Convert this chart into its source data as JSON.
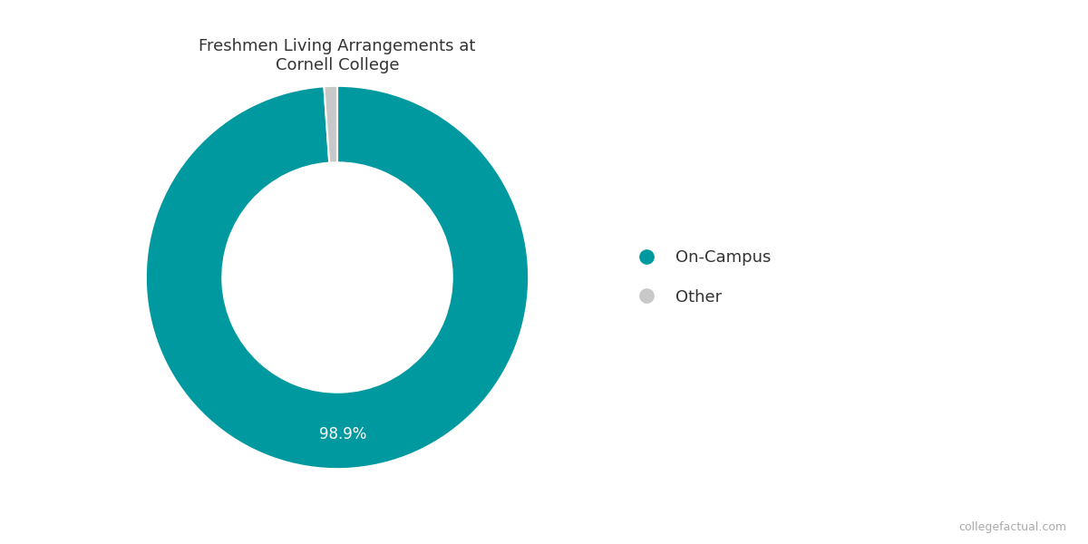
{
  "title": "Freshmen Living Arrangements at\nCornell College",
  "labels": [
    "On-Campus",
    "Other"
  ],
  "values": [
    98.9,
    1.1
  ],
  "colors": [
    "#0099a0",
    "#c8c8c8"
  ],
  "wedge_label": "98.9%",
  "donut_ratio": 0.6,
  "background_color": "#ffffff",
  "title_fontsize": 13,
  "annotation_fontsize": 12,
  "legend_fontsize": 13,
  "watermark": "collegefactual.com",
  "title_color": "#333333",
  "label_color": "#ffffff",
  "watermark_color": "#aaaaaa"
}
